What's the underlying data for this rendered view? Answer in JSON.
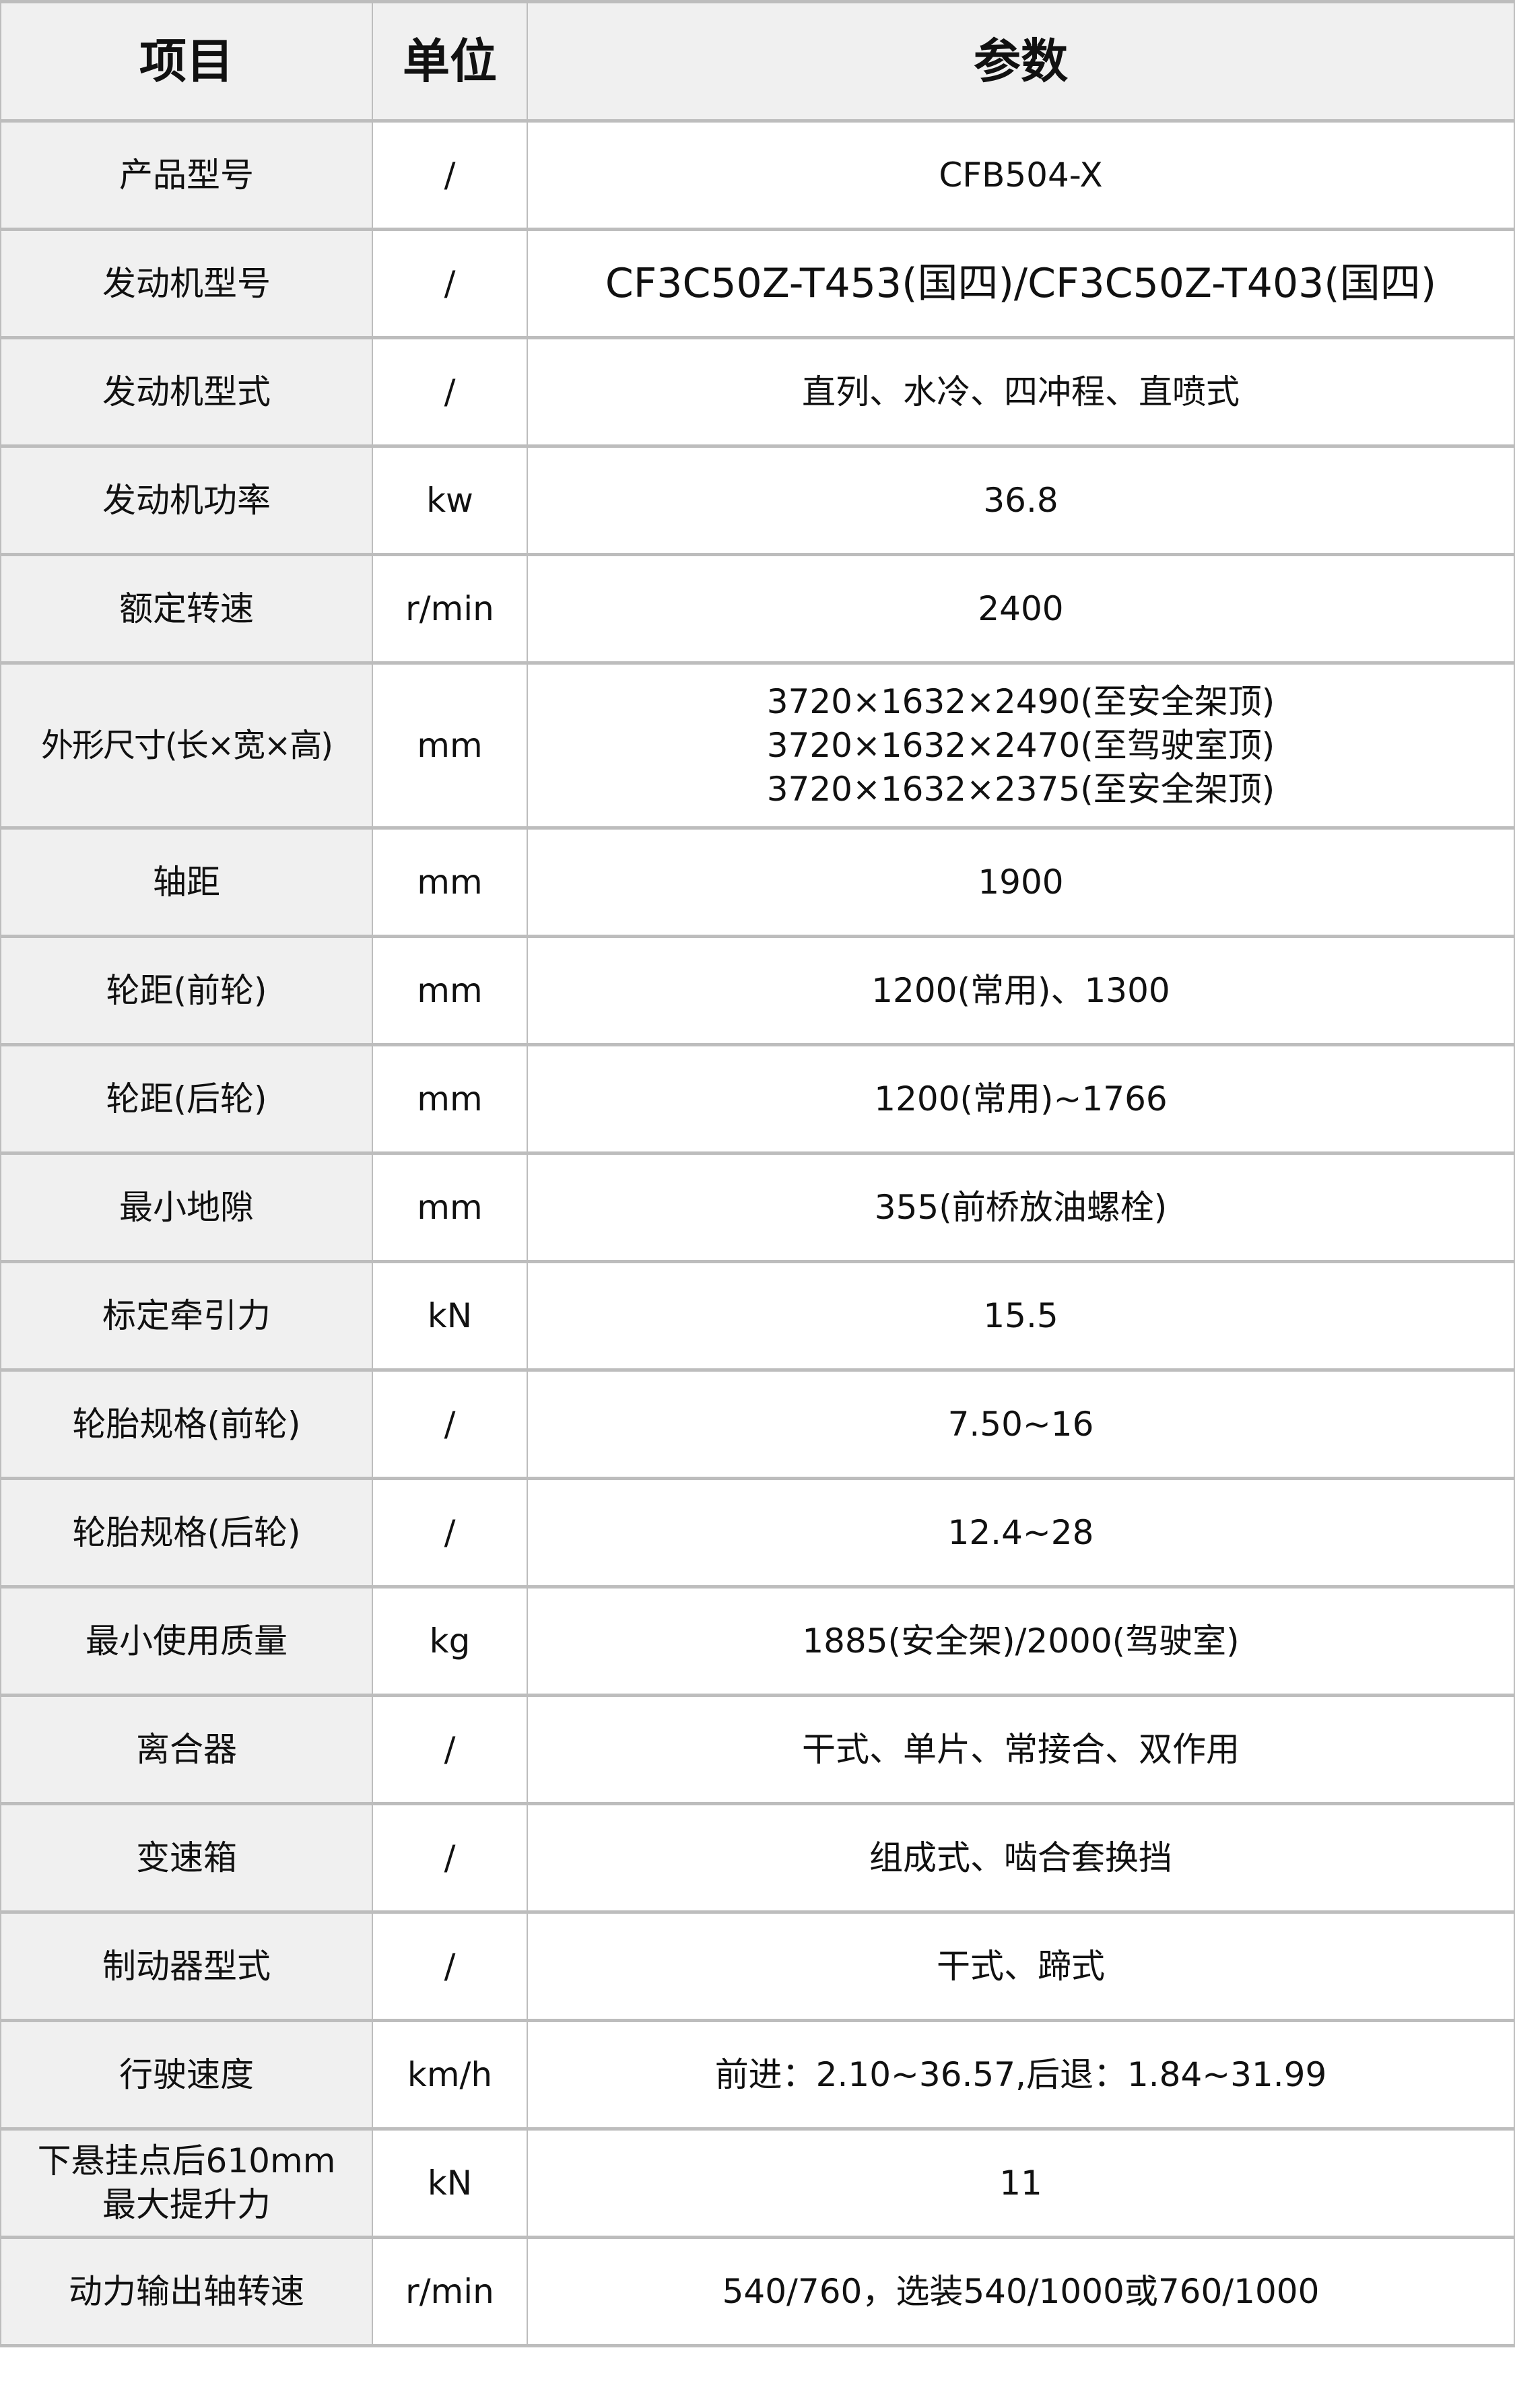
{
  "header": {
    "item": "项目",
    "unit": "单位",
    "param": "参数"
  },
  "rows": [
    {
      "item": "产品型号",
      "unit": "/",
      "value": [
        "CFB504-X"
      ]
    },
    {
      "item": "发动机型号",
      "unit": "/",
      "value": [
        "CF3C50Z-T453(国四)/CF3C50Z-T403(国四)"
      ]
    },
    {
      "item": "发动机型式",
      "unit": "/",
      "value": [
        "直列、水冷、四冲程、直喷式"
      ]
    },
    {
      "item": "发动机功率",
      "unit": "kw",
      "value": [
        "36.8"
      ]
    },
    {
      "item": "额定转速",
      "unit": "r/min",
      "value": [
        "2400"
      ]
    },
    {
      "item": "外形尺寸(长×宽×高)",
      "unit": "mm",
      "value": [
        "3720×1632×2490(至安全架顶)",
        "3720×1632×2470(至驾驶室顶)",
        "3720×1632×2375(至安全架顶)"
      ]
    },
    {
      "item": "轴距",
      "unit": "mm",
      "value": [
        "1900"
      ]
    },
    {
      "item": "轮距(前轮)",
      "unit": "mm",
      "value": [
        "1200(常用)、1300"
      ]
    },
    {
      "item": "轮距(后轮)",
      "unit": "mm",
      "value": [
        "1200(常用)~1766"
      ]
    },
    {
      "item": "最小地隙",
      "unit": "mm",
      "value": [
        "355(前桥放油螺栓)"
      ]
    },
    {
      "item": "标定牵引力",
      "unit": "kN",
      "value": [
        "15.5"
      ]
    },
    {
      "item": "轮胎规格(前轮)",
      "unit": "/",
      "value": [
        "7.50~16"
      ]
    },
    {
      "item": "轮胎规格(后轮)",
      "unit": "/",
      "value": [
        "12.4~28"
      ]
    },
    {
      "item": "最小使用质量",
      "unit": "kg",
      "value": [
        "1885(安全架)/2000(驾驶室)"
      ]
    },
    {
      "item": "离合器",
      "unit": "/",
      "value": [
        "干式、单片、常接合、双作用"
      ]
    },
    {
      "item": "变速箱",
      "unit": "/",
      "value": [
        "组成式、啮合套换挡"
      ]
    },
    {
      "item": "制动器型式",
      "unit": "/",
      "value": [
        "干式、蹄式"
      ]
    },
    {
      "item": "行驶速度",
      "unit": "km/h",
      "value": [
        "前进：2.10~36.57,后退：1.84~31.99"
      ]
    },
    {
      "item": "下悬挂点后610mm最大提升力",
      "item_lines": [
        "下悬挂点后610mm",
        "最大提升力"
      ],
      "unit": "kN",
      "value": [
        "11"
      ]
    },
    {
      "item": "动力输出轴转速",
      "unit": "r/min",
      "value": [
        "540/760，选装540/1000或760/1000"
      ]
    }
  ]
}
